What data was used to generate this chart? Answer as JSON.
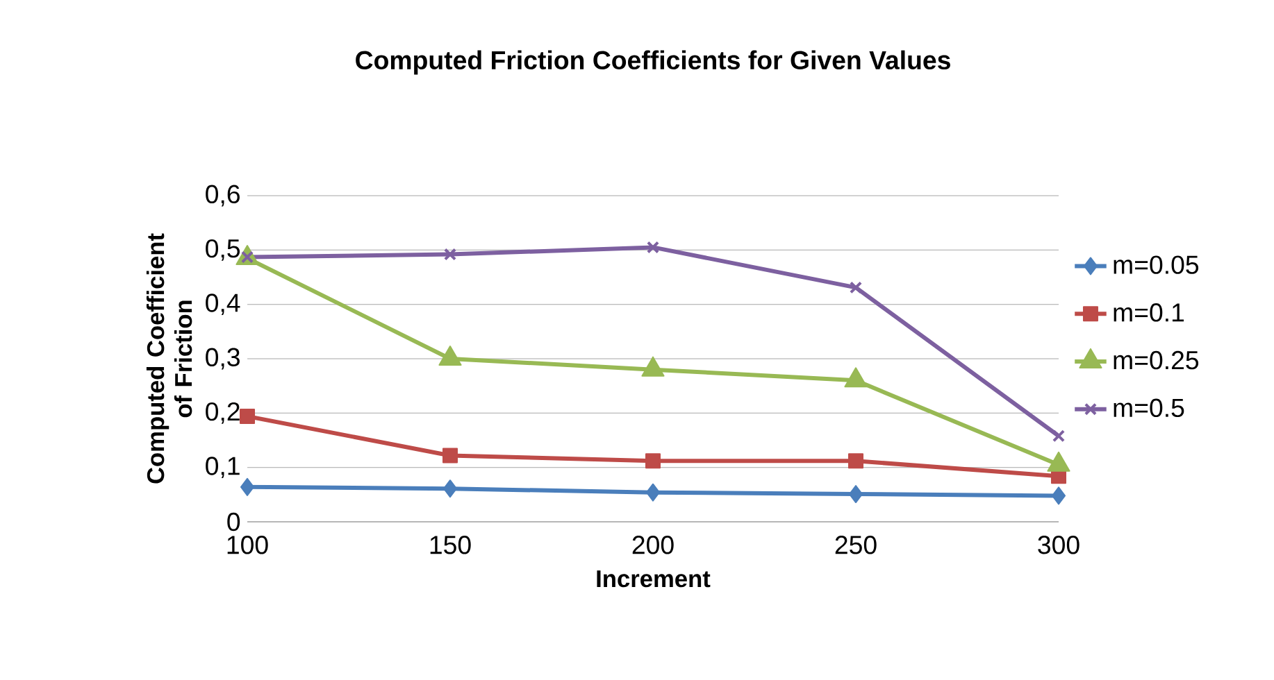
{
  "chart_data": {
    "type": "line",
    "title": "Computed Friction Coefficients for Given Values",
    "xlabel": "Increment",
    "ylabel": "Computed Coefficient of Friction",
    "categories": [
      "100",
      "150",
      "200",
      "250",
      "300"
    ],
    "series": [
      {
        "name": "m=0.05",
        "color": "#4a7ebb",
        "marker": "diamond",
        "values": [
          0.064,
          0.061,
          0.054,
          0.051,
          0.048
        ]
      },
      {
        "name": "m=0.1",
        "color": "#be4b48",
        "marker": "square",
        "values": [
          0.194,
          0.122,
          0.112,
          0.112,
          0.084
        ]
      },
      {
        "name": "m=0.25",
        "color": "#98b954",
        "marker": "triangle",
        "values": [
          0.485,
          0.3,
          0.28,
          0.26,
          0.105
        ]
      },
      {
        "name": "m=0.5",
        "color": "#7d60a0",
        "marker": "cross",
        "values": [
          0.487,
          0.492,
          0.505,
          0.431,
          0.158
        ]
      }
    ],
    "ylim": [
      0,
      0.6
    ],
    "yticks": [
      0,
      {
        "value": 0.1,
        "label": "0,1"
      },
      {
        "value": 0.2,
        "label": "0,2"
      },
      {
        "value": 0.3,
        "label": "0,3"
      },
      {
        "value": 0.4,
        "label": "0,4"
      },
      {
        "value": 0.5,
        "label": "0,5"
      },
      {
        "value": 0.6,
        "label": "0,6"
      }
    ],
    "grid": "y",
    "legend": "right",
    "line_style": "solid"
  }
}
